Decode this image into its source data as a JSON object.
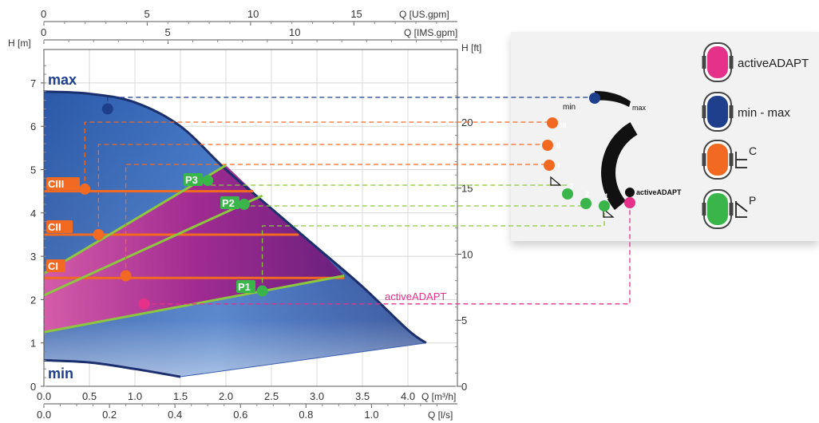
{
  "chart_data": {
    "type": "area",
    "axes": {
      "h_m": {
        "label": "H [m]",
        "ticks": [
          0,
          1,
          2,
          3,
          4,
          5,
          6,
          7
        ],
        "range": [
          0,
          7.6
        ]
      },
      "h_ft": {
        "label": "H [ft]",
        "ticks": [
          0,
          5,
          10,
          15,
          20
        ],
        "range": [
          0,
          24.9
        ]
      },
      "q_m3h": {
        "label": "Q [m³/h]",
        "ticks": [
          "0.0",
          "0.5",
          "1.0",
          "1.5",
          "2.0",
          "2.5",
          "3.0",
          "3.5",
          "4.0"
        ],
        "range": [
          0,
          4.4
        ]
      },
      "q_ls": {
        "label": "Q [l/s]",
        "ticks": [
          "0.0",
          "0.2",
          "0.4",
          "0.6",
          "0.8",
          "1.0"
        ],
        "range": [
          0,
          1.222
        ]
      },
      "q_usgpm": {
        "label": "Q [US.gpm]",
        "ticks": [
          "0",
          "5",
          "10",
          "15"
        ],
        "range": [
          0,
          19.37
        ]
      },
      "q_imsgpm": {
        "label": "Q [IMS.gpm]",
        "ticks": [
          "0",
          "5",
          "10"
        ],
        "range": [
          0,
          16.14
        ]
      }
    },
    "curves": {
      "max": {
        "label": "max",
        "points": [
          [
            0,
            6.8
          ],
          [
            0.5,
            6.75
          ],
          [
            1.0,
            6.55
          ],
          [
            1.5,
            6.0
          ],
          [
            2.0,
            5.0
          ],
          [
            2.5,
            4.1
          ],
          [
            3.0,
            3.2
          ],
          [
            3.5,
            2.3
          ],
          [
            4.0,
            1.3
          ],
          [
            4.2,
            1.0
          ]
        ]
      },
      "min": {
        "label": "min",
        "points": [
          [
            0,
            0.6
          ],
          [
            0.5,
            0.55
          ],
          [
            1.0,
            0.4
          ],
          [
            1.5,
            0.22
          ]
        ]
      }
    },
    "constant_pressure": [
      {
        "label": "CIII",
        "h": 4.5,
        "x_end": 2.3
      },
      {
        "label": "CII",
        "h": 3.5,
        "x_end": 2.8
      },
      {
        "label": "CI",
        "h": 2.5,
        "x_end": 3.3
      }
    ],
    "proportional_pressure": [
      {
        "label": "P3",
        "from": [
          0,
          2.6
        ],
        "to": [
          2.0,
          5.1
        ]
      },
      {
        "label": "P2",
        "from": [
          0,
          2.1
        ],
        "to": [
          2.4,
          4.4
        ]
      },
      {
        "label": "P1",
        "from": [
          0,
          1.25
        ],
        "to": [
          3.3,
          2.55
        ]
      }
    ],
    "active_adapt_label": "activeADAPT",
    "operating_points": [
      {
        "name": "max",
        "x": 0.7,
        "h": 6.4,
        "color": "#1e3f8c"
      },
      {
        "name": "CIII",
        "x": 0.45,
        "h": 4.55,
        "color": "#f26a21"
      },
      {
        "name": "CII",
        "x": 0.6,
        "h": 3.5,
        "color": "#f26a21"
      },
      {
        "name": "CI",
        "x": 0.9,
        "h": 2.55,
        "color": "#f26a21"
      },
      {
        "name": "P3",
        "x": 1.8,
        "h": 4.75,
        "color": "#39b54a"
      },
      {
        "name": "P2",
        "x": 2.2,
        "h": 4.2,
        "color": "#39b54a"
      },
      {
        "name": "P1",
        "x": 2.4,
        "h": 2.2,
        "color": "#39b54a"
      },
      {
        "name": "activeADAPT",
        "x": 1.1,
        "h": 1.9,
        "color": "#e5318a"
      }
    ]
  },
  "dial": {
    "min_label": "min",
    "max_label": "max",
    "active_label": "activeADAPT",
    "c_marks": [
      "III",
      "II",
      "I"
    ],
    "p_marks": [
      "3",
      "2",
      "1"
    ]
  },
  "legend": [
    {
      "id": "active",
      "label": "activeADAPT",
      "color": "#e5318a"
    },
    {
      "id": "minmax",
      "label": "min - max",
      "color": "#1e3f8c"
    },
    {
      "id": "c",
      "label": "C",
      "color": "#f26a21"
    },
    {
      "id": "p",
      "label": "P",
      "color": "#39b54a"
    }
  ],
  "colors": {
    "navy": "#1e3f8c",
    "magenta": "#c0208f",
    "orange": "#f26a21",
    "green": "#8dc63f",
    "pink": "#e5318a"
  }
}
